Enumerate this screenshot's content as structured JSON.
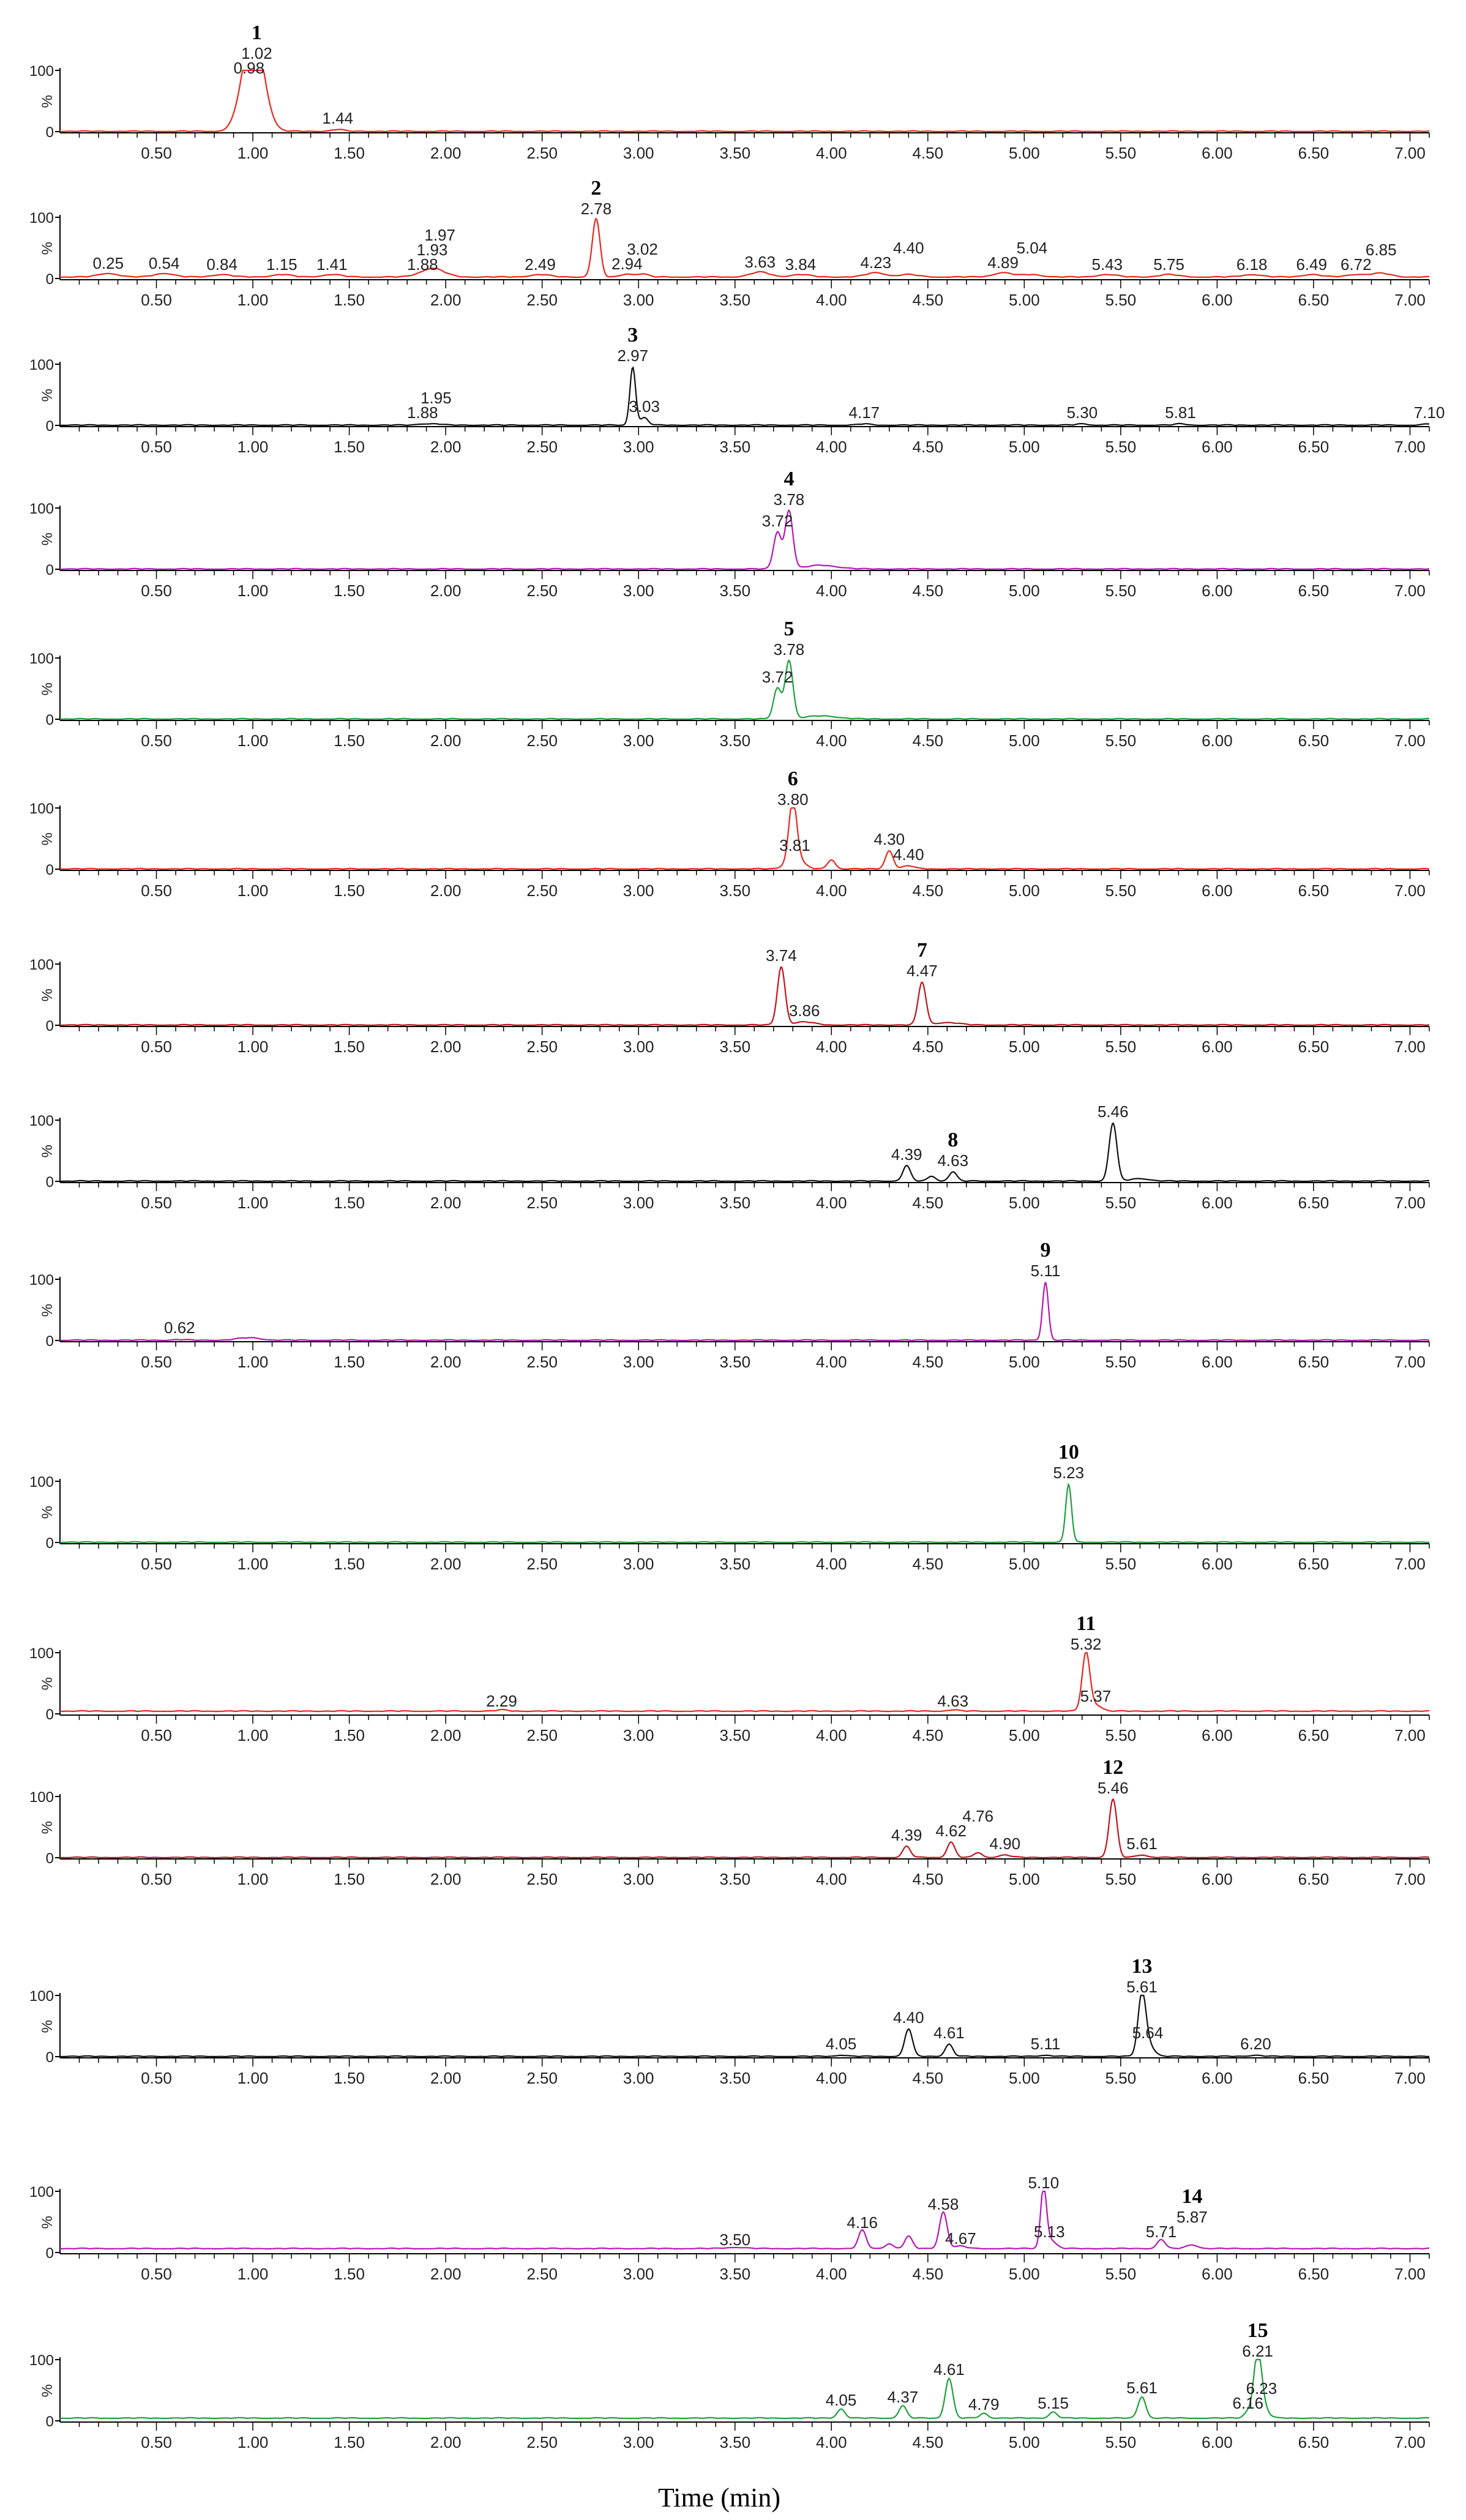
{
  "x_title": "Time (min)",
  "colors": {
    "red": "#e8281e",
    "darkred": "#c0141e",
    "black": "#111111",
    "magenta": "#b418b4",
    "green": "#1ea03c",
    "axis": "#000000"
  },
  "chart_data": [
    {
      "type": "line",
      "compound": "1",
      "color": "red",
      "y_ticks": [
        "100",
        "%",
        "0"
      ],
      "ylim": [
        0,
        100
      ],
      "xlim": [
        0,
        7.1
      ],
      "x_ticks": [
        "0.50",
        "1.00",
        "1.50",
        "2.00",
        "2.50",
        "3.00",
        "3.50",
        "4.00",
        "4.50",
        "5.00",
        "5.50",
        "6.00",
        "6.50",
        "7.00"
      ],
      "peaks": [
        {
          "rt": 0.98,
          "h": 85,
          "w": 0.05,
          "label": "0.98"
        },
        {
          "rt": 1.02,
          "h": 95,
          "w": 0.05,
          "label": "1.02",
          "compound": true
        },
        {
          "rt": 1.44,
          "h": 3,
          "w": 0.03,
          "label": "1.44"
        }
      ],
      "baseline": 0
    },
    {
      "type": "line",
      "compound": "2",
      "color": "red",
      "y_ticks": [
        "100",
        "%",
        "0"
      ],
      "ylim": [
        0,
        100
      ],
      "xlim": [
        0,
        7.1
      ],
      "x_ticks": [
        "0.50",
        "1.00",
        "1.50",
        "2.00",
        "2.50",
        "3.00",
        "3.50",
        "4.00",
        "4.50",
        "5.00",
        "5.50",
        "6.00",
        "6.50",
        "7.00"
      ],
      "peaks": [
        {
          "rt": 0.25,
          "h": 6,
          "w": 0.05,
          "label": "0.25"
        },
        {
          "rt": 0.54,
          "h": 6,
          "w": 0.05,
          "label": "0.54"
        },
        {
          "rt": 0.84,
          "h": 4,
          "w": 0.05,
          "label": "0.84"
        },
        {
          "rt": 1.15,
          "h": 4,
          "w": 0.05,
          "label": "1.15"
        },
        {
          "rt": 1.41,
          "h": 4,
          "w": 0.05,
          "label": "1.41"
        },
        {
          "rt": 1.88,
          "h": 4,
          "w": 0.05,
          "label": "1.88"
        },
        {
          "rt": 1.93,
          "h": 8,
          "w": 0.05,
          "label": "1.93"
        },
        {
          "rt": 1.97,
          "h": 5,
          "w": 0.05,
          "label": "1.97"
        },
        {
          "rt": 2.49,
          "h": 4,
          "w": 0.05,
          "label": "2.49"
        },
        {
          "rt": 2.78,
          "h": 95,
          "w": 0.02,
          "label": "2.78",
          "compound": true
        },
        {
          "rt": 2.94,
          "h": 5,
          "w": 0.03,
          "label": "2.94"
        },
        {
          "rt": 3.02,
          "h": 5,
          "w": 0.03,
          "label": "3.02"
        },
        {
          "rt": 3.63,
          "h": 8,
          "w": 0.05,
          "label": "3.63"
        },
        {
          "rt": 3.84,
          "h": 4,
          "w": 0.05,
          "label": "3.84"
        },
        {
          "rt": 4.23,
          "h": 7,
          "w": 0.05,
          "label": "4.23"
        },
        {
          "rt": 4.4,
          "h": 4,
          "w": 0.05,
          "label": "4.40"
        },
        {
          "rt": 4.89,
          "h": 7,
          "w": 0.05,
          "label": "4.89"
        },
        {
          "rt": 5.04,
          "h": 4,
          "w": 0.05,
          "label": "5.04"
        },
        {
          "rt": 5.43,
          "h": 4,
          "w": 0.05,
          "label": "5.43"
        },
        {
          "rt": 5.75,
          "h": 4,
          "w": 0.05,
          "label": "5.75"
        },
        {
          "rt": 6.18,
          "h": 4,
          "w": 0.05,
          "label": "6.18"
        },
        {
          "rt": 6.49,
          "h": 4,
          "w": 0.05,
          "label": "6.49"
        },
        {
          "rt": 6.72,
          "h": 4,
          "w": 0.05,
          "label": "6.72"
        },
        {
          "rt": 6.85,
          "h": 6,
          "w": 0.05,
          "label": "6.85"
        }
      ],
      "baseline": 2
    },
    {
      "type": "line",
      "compound": "3",
      "color": "black",
      "y_ticks": [
        "100",
        "%",
        "0"
      ],
      "ylim": [
        0,
        100
      ],
      "xlim": [
        0,
        7.1
      ],
      "x_ticks": [
        "0.50",
        "1.00",
        "1.50",
        "2.00",
        "2.50",
        "3.00",
        "3.50",
        "4.00",
        "4.50",
        "5.00",
        "5.50",
        "6.00",
        "6.50",
        "7.00"
      ],
      "peaks": [
        {
          "rt": 1.88,
          "h": 2,
          "w": 0.03,
          "label": "1.88"
        },
        {
          "rt": 1.95,
          "h": 2,
          "w": 0.03,
          "label": "1.95"
        },
        {
          "rt": 2.97,
          "h": 95,
          "w": 0.015,
          "label": "2.97",
          "compound": true
        },
        {
          "rt": 3.03,
          "h": 12,
          "w": 0.02,
          "label": "3.03"
        },
        {
          "rt": 4.17,
          "h": 2,
          "w": 0.03,
          "label": "4.17"
        },
        {
          "rt": 5.3,
          "h": 2,
          "w": 0.03,
          "label": "5.30"
        },
        {
          "rt": 5.81,
          "h": 2,
          "w": 0.03,
          "label": "5.81"
        },
        {
          "rt": 7.1,
          "h": 2,
          "w": 0.03,
          "label": "7.10"
        }
      ],
      "baseline": 0
    },
    {
      "type": "line",
      "compound": "4",
      "color": "magenta",
      "y_ticks": [
        "100",
        "%",
        "0"
      ],
      "ylim": [
        0,
        100
      ],
      "xlim": [
        0,
        7.1
      ],
      "x_ticks": [
        "0.50",
        "1.00",
        "1.50",
        "2.00",
        "2.50",
        "3.00",
        "3.50",
        "4.00",
        "4.50",
        "5.00",
        "5.50",
        "6.00",
        "6.50",
        "7.00"
      ],
      "peaks": [
        {
          "rt": 3.72,
          "h": 60,
          "w": 0.02,
          "label": "3.72"
        },
        {
          "rt": 3.78,
          "h": 95,
          "w": 0.02,
          "label": "3.78",
          "compound": true
        },
        {
          "rt": 3.95,
          "h": 6,
          "w": 0.08
        }
      ],
      "baseline": 0
    },
    {
      "type": "line",
      "compound": "5",
      "color": "green",
      "y_ticks": [
        "100",
        "%",
        "0"
      ],
      "ylim": [
        0,
        100
      ],
      "xlim": [
        0,
        7.1
      ],
      "x_ticks": [
        "0.50",
        "1.00",
        "1.50",
        "2.00",
        "2.50",
        "3.00",
        "3.50",
        "4.00",
        "4.50",
        "5.00",
        "5.50",
        "6.00",
        "6.50",
        "7.00"
      ],
      "peaks": [
        {
          "rt": 3.72,
          "h": 50,
          "w": 0.02,
          "label": "3.72"
        },
        {
          "rt": 3.78,
          "h": 95,
          "w": 0.02,
          "label": "3.78",
          "compound": true
        },
        {
          "rt": 3.95,
          "h": 5,
          "w": 0.08
        }
      ],
      "baseline": 0
    },
    {
      "type": "line",
      "compound": "6",
      "color": "red",
      "y_ticks": [
        "100",
        "%",
        "0"
      ],
      "ylim": [
        0,
        100
      ],
      "xlim": [
        0,
        7.1
      ],
      "x_ticks": [
        "0.50",
        "1.00",
        "1.50",
        "2.00",
        "2.50",
        "3.00",
        "3.50",
        "4.00",
        "4.50",
        "5.00",
        "5.50",
        "6.00",
        "6.50",
        "7.00"
      ],
      "peaks": [
        {
          "rt": 3.8,
          "h": 95,
          "w": 0.02,
          "label": "3.80",
          "compound": true
        },
        {
          "rt": 3.81,
          "h": 20,
          "w": 0.04,
          "label": "3.81"
        },
        {
          "rt": 4.0,
          "h": 15,
          "w": 0.02
        },
        {
          "rt": 4.3,
          "h": 30,
          "w": 0.02,
          "label": "4.30"
        },
        {
          "rt": 4.4,
          "h": 5,
          "w": 0.03,
          "label": "4.40"
        }
      ],
      "baseline": 0
    },
    {
      "type": "line",
      "compound": "7",
      "color": "darkred",
      "y_ticks": [
        "100",
        "%",
        "0"
      ],
      "ylim": [
        0,
        100
      ],
      "xlim": [
        0,
        7.1
      ],
      "x_ticks": [
        "0.50",
        "1.00",
        "1.50",
        "2.00",
        "2.50",
        "3.00",
        "3.50",
        "4.00",
        "4.50",
        "5.00",
        "5.50",
        "6.00",
        "6.50",
        "7.00"
      ],
      "peaks": [
        {
          "rt": 3.74,
          "h": 95,
          "w": 0.02,
          "label": "3.74"
        },
        {
          "rt": 3.86,
          "h": 5,
          "w": 0.05,
          "label": "3.86"
        },
        {
          "rt": 4.47,
          "h": 70,
          "w": 0.02,
          "label": "4.47",
          "compound": true
        },
        {
          "rt": 4.6,
          "h": 4,
          "w": 0.06
        }
      ],
      "baseline": 0
    },
    {
      "type": "line",
      "compound": "8",
      "color": "black",
      "y_ticks": [
        "100",
        "%",
        "0"
      ],
      "ylim": [
        0,
        100
      ],
      "xlim": [
        0,
        7.1
      ],
      "x_ticks": [
        "0.50",
        "1.00",
        "1.50",
        "2.00",
        "2.50",
        "3.00",
        "3.50",
        "4.00",
        "4.50",
        "5.00",
        "5.50",
        "6.00",
        "6.50",
        "7.00"
      ],
      "peaks": [
        {
          "rt": 4.39,
          "h": 25,
          "w": 0.02,
          "label": "4.39"
        },
        {
          "rt": 4.52,
          "h": 8,
          "w": 0.02
        },
        {
          "rt": 4.63,
          "h": 15,
          "w": 0.02,
          "label": "4.63",
          "compound": true
        },
        {
          "rt": 5.46,
          "h": 95,
          "w": 0.02,
          "label": "5.46"
        },
        {
          "rt": 5.6,
          "h": 4,
          "w": 0.05
        }
      ],
      "baseline": 0
    },
    {
      "type": "line",
      "compound": "9",
      "color": "magenta",
      "y_ticks": [
        "100",
        "%",
        "0"
      ],
      "ylim": [
        0,
        100
      ],
      "xlim": [
        0,
        7.1
      ],
      "x_ticks": [
        "0.50",
        "1.00",
        "1.50",
        "2.00",
        "2.50",
        "3.00",
        "3.50",
        "4.00",
        "4.50",
        "5.00",
        "5.50",
        "6.00",
        "6.50",
        "7.00"
      ],
      "peaks": [
        {
          "rt": 0.62,
          "h": 1,
          "w": 0.03,
          "label": "0.62"
        },
        {
          "rt": 0.98,
          "h": 4,
          "w": 0.06
        },
        {
          "rt": 5.11,
          "h": 95,
          "w": 0.015,
          "label": "5.11",
          "compound": true
        }
      ],
      "baseline": 0
    },
    {
      "type": "line",
      "compound": "10",
      "color": "green",
      "y_ticks": [
        "100",
        "%",
        "0"
      ],
      "ylim": [
        0,
        100
      ],
      "xlim": [
        0,
        7.1
      ],
      "x_ticks": [
        "0.50",
        "1.00",
        "1.50",
        "2.00",
        "2.50",
        "3.00",
        "3.50",
        "4.00",
        "4.50",
        "5.00",
        "5.50",
        "6.00",
        "6.50",
        "7.00"
      ],
      "peaks": [
        {
          "rt": 5.23,
          "h": 95,
          "w": 0.015,
          "label": "5.23",
          "compound": true
        }
      ],
      "baseline": 0
    },
    {
      "type": "line",
      "compound": "11",
      "color": "red",
      "y_ticks": [
        "100",
        "%",
        "0"
      ],
      "ylim": [
        0,
        100
      ],
      "xlim": [
        0,
        7.1
      ],
      "x_ticks": [
        "0.50",
        "1.00",
        "1.50",
        "2.00",
        "2.50",
        "3.00",
        "3.50",
        "4.00",
        "4.50",
        "5.00",
        "5.50",
        "6.00",
        "6.50",
        "7.00"
      ],
      "peaks": [
        {
          "rt": 2.29,
          "h": 2,
          "w": 0.03,
          "label": "2.29"
        },
        {
          "rt": 4.63,
          "h": 2,
          "w": 0.03,
          "label": "4.63"
        },
        {
          "rt": 5.32,
          "h": 95,
          "w": 0.02,
          "label": "5.32",
          "compound": true
        },
        {
          "rt": 5.37,
          "h": 10,
          "w": 0.03,
          "label": "5.37"
        }
      ],
      "baseline": 4
    },
    {
      "type": "line",
      "compound": "12",
      "color": "darkred",
      "y_ticks": [
        "100",
        "%",
        "0"
      ],
      "ylim": [
        0,
        100
      ],
      "xlim": [
        0,
        7.1
      ],
      "x_ticks": [
        "0.50",
        "1.00",
        "1.50",
        "2.00",
        "2.50",
        "3.00",
        "3.50",
        "4.00",
        "4.50",
        "5.00",
        "5.50",
        "6.00",
        "6.50",
        "7.00"
      ],
      "peaks": [
        {
          "rt": 4.39,
          "h": 18,
          "w": 0.02,
          "label": "4.39"
        },
        {
          "rt": 4.62,
          "h": 25,
          "w": 0.02,
          "label": "4.62"
        },
        {
          "rt": 4.76,
          "h": 8,
          "w": 0.02,
          "label": "4.76"
        },
        {
          "rt": 4.9,
          "h": 4,
          "w": 0.03,
          "label": "4.90"
        },
        {
          "rt": 5.46,
          "h": 95,
          "w": 0.02,
          "label": "5.46",
          "compound": true
        },
        {
          "rt": 5.61,
          "h": 4,
          "w": 0.03,
          "label": "5.61"
        }
      ],
      "baseline": 0
    },
    {
      "type": "line",
      "compound": "13",
      "color": "black",
      "y_ticks": [
        "100",
        "%",
        "0"
      ],
      "ylim": [
        0,
        100
      ],
      "xlim": [
        0,
        7.1
      ],
      "x_ticks": [
        "0.50",
        "1.00",
        "1.50",
        "2.00",
        "2.50",
        "3.00",
        "3.50",
        "4.00",
        "4.50",
        "5.00",
        "5.50",
        "6.00",
        "6.50",
        "7.00"
      ],
      "peaks": [
        {
          "rt": 4.05,
          "h": 2,
          "w": 0.03,
          "label": "4.05"
        },
        {
          "rt": 4.4,
          "h": 45,
          "w": 0.02,
          "label": "4.40"
        },
        {
          "rt": 4.61,
          "h": 20,
          "w": 0.02,
          "label": "4.61"
        },
        {
          "rt": 5.11,
          "h": 2,
          "w": 0.03,
          "label": "5.11"
        },
        {
          "rt": 5.61,
          "h": 95,
          "w": 0.02,
          "label": "5.61",
          "compound": true
        },
        {
          "rt": 5.64,
          "h": 20,
          "w": 0.03,
          "label": "5.64"
        },
        {
          "rt": 6.2,
          "h": 2,
          "w": 0.03,
          "label": "6.20"
        }
      ],
      "baseline": 0
    },
    {
      "type": "line",
      "compound": "14",
      "color": "magenta",
      "y_ticks": [
        "100",
        "%",
        "0"
      ],
      "ylim": [
        0,
        100
      ],
      "xlim": [
        0,
        7.1
      ],
      "x_ticks": [
        "0.50",
        "1.00",
        "1.50",
        "2.00",
        "2.50",
        "3.00",
        "3.50",
        "4.00",
        "4.50",
        "5.00",
        "5.50",
        "6.00",
        "6.50",
        "7.00"
      ],
      "peaks": [
        {
          "rt": 3.5,
          "h": 2,
          "w": 0.05,
          "label": "3.50"
        },
        {
          "rt": 4.16,
          "h": 30,
          "w": 0.02,
          "label": "4.16"
        },
        {
          "rt": 4.3,
          "h": 8,
          "w": 0.02
        },
        {
          "rt": 4.4,
          "h": 20,
          "w": 0.02
        },
        {
          "rt": 4.58,
          "h": 60,
          "w": 0.02,
          "label": "4.58"
        },
        {
          "rt": 4.67,
          "h": 4,
          "w": 0.03,
          "label": "4.67"
        },
        {
          "rt": 5.1,
          "h": 95,
          "w": 0.015,
          "label": "5.10"
        },
        {
          "rt": 5.13,
          "h": 15,
          "w": 0.03,
          "label": "5.13"
        },
        {
          "rt": 5.71,
          "h": 15,
          "w": 0.02,
          "label": "5.71"
        },
        {
          "rt": 5.87,
          "h": 6,
          "w": 0.03,
          "label": "5.87",
          "compound": true
        }
      ],
      "baseline": 6
    },
    {
      "type": "line",
      "compound": "15",
      "color": "green",
      "y_ticks": [
        "100",
        "%",
        "0"
      ],
      "ylim": [
        0,
        100
      ],
      "xlim": [
        0,
        7.1
      ],
      "x_ticks": [
        "0.50",
        "1.00",
        "1.50",
        "2.00",
        "2.50",
        "3.00",
        "3.50",
        "4.00",
        "4.50",
        "5.00",
        "5.50",
        "6.00",
        "6.50",
        "7.00"
      ],
      "peaks": [
        {
          "rt": 4.05,
          "h": 15,
          "w": 0.02,
          "label": "4.05"
        },
        {
          "rt": 4.37,
          "h": 20,
          "w": 0.02,
          "label": "4.37"
        },
        {
          "rt": 4.61,
          "h": 65,
          "w": 0.02,
          "label": "4.61"
        },
        {
          "rt": 4.79,
          "h": 8,
          "w": 0.02,
          "label": "4.79"
        },
        {
          "rt": 5.15,
          "h": 10,
          "w": 0.02,
          "label": "5.15"
        },
        {
          "rt": 5.61,
          "h": 35,
          "w": 0.02,
          "label": "5.61"
        },
        {
          "rt": 6.16,
          "h": 10,
          "w": 0.02,
          "label": "6.16"
        },
        {
          "rt": 6.21,
          "h": 95,
          "w": 0.02,
          "label": "6.21",
          "compound": true
        },
        {
          "rt": 6.23,
          "h": 20,
          "w": 0.03,
          "label": "6.23"
        }
      ],
      "baseline": 4
    }
  ]
}
